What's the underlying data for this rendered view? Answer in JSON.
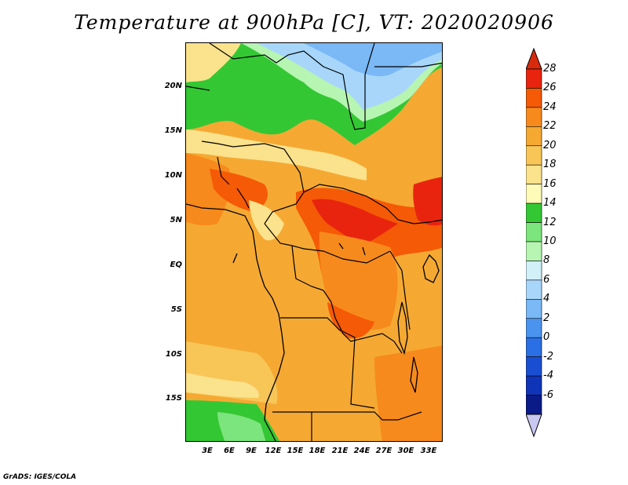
{
  "title": "Temperature at 900hPa [C], VT: 2020020906",
  "footer": "GrADS: IGES/COLA",
  "map": {
    "lon_labels": [
      "3E",
      "6E",
      "9E",
      "12E",
      "15E",
      "18E",
      "21E",
      "24E",
      "27E",
      "30E",
      "33E"
    ],
    "lat_labels": [
      "20N",
      "15N",
      "10N",
      "5N",
      "EQ",
      "5S",
      "10S",
      "15S"
    ]
  },
  "colorbar": {
    "levels": [
      "28",
      "26",
      "24",
      "22",
      "20",
      "18",
      "16",
      "14",
      "12",
      "10",
      "8",
      "6",
      "4",
      "2",
      "0",
      "-2",
      "-4",
      "-6"
    ],
    "colors": [
      "#e8240f",
      "#f55a06",
      "#f78a1c",
      "#f5a933",
      "#f8c657",
      "#fbe28c",
      "#fdfbb7",
      "#34c734",
      "#7de57d",
      "#b6f5b2",
      "#d1f0f8",
      "#a7d6fa",
      "#7ab8f6",
      "#4a93ee",
      "#2a6fe3",
      "#1a4ed2",
      "#0f34b8",
      "#0a1a86"
    ],
    "top_color": "#d82a0c",
    "bottom_color": "#c8c8f0"
  }
}
